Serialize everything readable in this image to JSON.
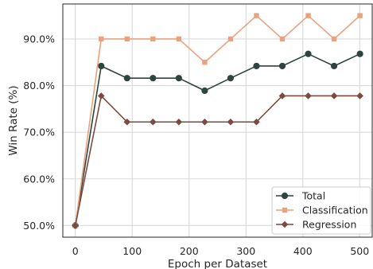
{
  "chart_data": {
    "type": "line",
    "title": "",
    "xlabel": "Epoch per Dataset",
    "ylabel": "Win Rate (%)",
    "xlim": [
      -22,
      522
    ],
    "ylim": [
      47.5,
      97.5
    ],
    "xticks": [
      0,
      100,
      200,
      300,
      400,
      500
    ],
    "xtick_labels": [
      "0",
      "100",
      "200",
      "300",
      "400",
      "500"
    ],
    "yticks": [
      50,
      60,
      70,
      80,
      90
    ],
    "ytick_labels": [
      "50.0%",
      "60.0%",
      "70.0%",
      "80.0%",
      "90.0%"
    ],
    "grid": true,
    "legend_position": "bottom-right",
    "x": [
      0,
      45.5,
      91,
      136.5,
      182,
      227.5,
      273,
      318.5,
      364,
      409.5,
      455,
      500.5
    ],
    "series": [
      {
        "name": "Total",
        "color": "#2e4440",
        "marker": "circle",
        "values": [
          50.0,
          84.2,
          81.6,
          81.6,
          81.6,
          78.9,
          81.6,
          84.2,
          84.2,
          86.8,
          84.2,
          86.8
        ]
      },
      {
        "name": "Classification",
        "color": "#e9a27f",
        "marker": "square",
        "values": [
          50.0,
          90.0,
          90.0,
          90.0,
          90.0,
          85.0,
          90.0,
          95.0,
          90.0,
          95.0,
          90.0,
          95.0
        ]
      },
      {
        "name": "Regression",
        "color": "#7b4a40",
        "marker": "diamond",
        "values": [
          50.0,
          77.8,
          72.2,
          72.2,
          72.2,
          72.2,
          72.2,
          72.2,
          77.8,
          77.8,
          77.8,
          77.8
        ]
      }
    ]
  }
}
